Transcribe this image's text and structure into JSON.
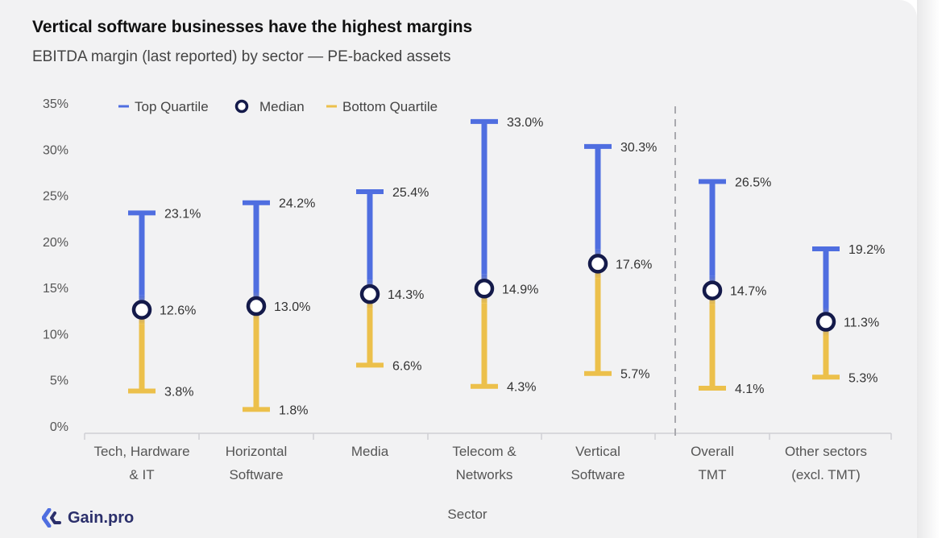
{
  "header": {
    "title": "Vertical software businesses have the highest margins",
    "subtitle": "EBITDA margin (last reported) by sector — PE-backed assets"
  },
  "brand": {
    "name": "Gain.pro"
  },
  "colors": {
    "top": "#4f6ee0",
    "bottom": "#ecc04b",
    "median": "#141a4a",
    "grid": "#d0d0d4"
  },
  "chart_data": {
    "type": "range",
    "xlabel": "Sector",
    "ylabel": "",
    "ylim": [
      0,
      35
    ],
    "yticks": [
      "0%",
      "5%",
      "10%",
      "15%",
      "20%",
      "25%",
      "30%",
      "35%"
    ],
    "legend": [
      "Top Quartile",
      "Median",
      "Bottom Quartile"
    ],
    "categories": [
      [
        "Tech, Hardware",
        "& IT"
      ],
      [
        "Horizontal",
        "Software"
      ],
      [
        "Media"
      ],
      [
        "Telecom &",
        "Networks"
      ],
      [
        "Vertical",
        "Software"
      ],
      [
        "Overall",
        "TMT"
      ],
      [
        "Other sectors",
        "(excl. TMT)"
      ]
    ],
    "series": [
      {
        "name": "Top Quartile",
        "values": [
          23.1,
          24.2,
          25.4,
          33.0,
          30.3,
          26.5,
          19.2
        ],
        "labels": [
          "23.1%",
          "24.2%",
          "25.4%",
          "33.0%",
          "30.3%",
          "26.5%",
          "19.2%"
        ]
      },
      {
        "name": "Median",
        "values": [
          12.6,
          13.0,
          14.3,
          14.9,
          17.6,
          14.7,
          11.3
        ],
        "labels": [
          "12.6%",
          "13.0%",
          "14.3%",
          "14.9%",
          "17.6%",
          "14.7%",
          "11.3%"
        ]
      },
      {
        "name": "Bottom Quartile",
        "values": [
          3.8,
          1.8,
          6.6,
          4.3,
          5.7,
          4.1,
          5.3
        ],
        "labels": [
          "3.8%",
          "1.8%",
          "6.6%",
          "4.3%",
          "5.7%",
          "4.1%",
          "5.3%"
        ]
      }
    ]
  }
}
